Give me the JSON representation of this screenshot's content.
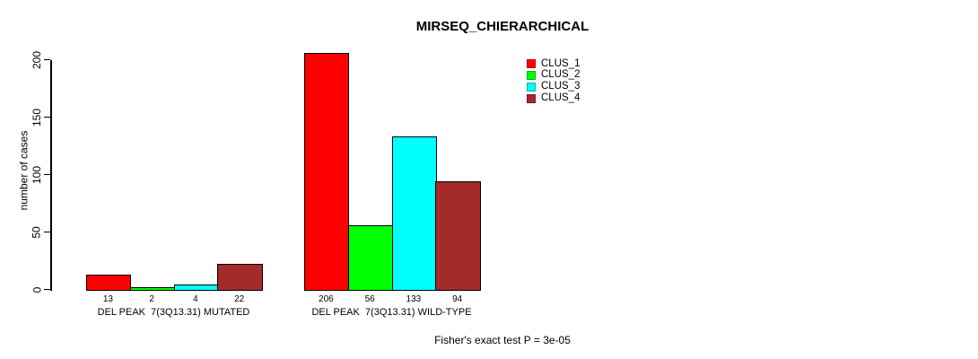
{
  "chart_data": {
    "type": "bar",
    "title": "MIRSEQ_CHIERARCHICAL",
    "xlabel": "",
    "ylabel": "number of cases",
    "ylim": [
      0,
      200
    ],
    "yticks": [
      0,
      50,
      100,
      150,
      200
    ],
    "grid": false,
    "legend_position": "top-right",
    "categories": [
      "DEL PEAK  7(3Q13.31) MUTATED",
      "DEL PEAK  7(3Q13.31) WILD-TYPE"
    ],
    "series": [
      {
        "name": "CLUS_1",
        "color": "#FF0000",
        "values": [
          13,
          206
        ]
      },
      {
        "name": "CLUS_2",
        "color": "#00FF00",
        "values": [
          2,
          56
        ]
      },
      {
        "name": "CLUS_3",
        "color": "#00FFFF",
        "values": [
          4,
          133
        ]
      },
      {
        "name": "CLUS_4",
        "color": "#A52A2A",
        "values": [
          22,
          94
        ]
      }
    ],
    "bar_value_labels_shown": true,
    "annotation": "Fisher's exact test P = 3e-05"
  }
}
